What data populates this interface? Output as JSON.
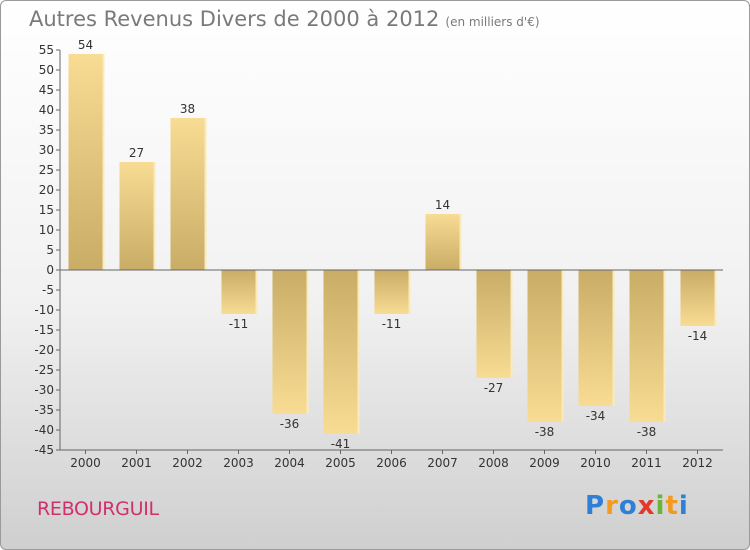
{
  "chart_data": {
    "type": "bar",
    "title": "Autres Revenus Divers de 2000 à 2012",
    "subtitle": "(en milliers d'€)",
    "categories": [
      "2000",
      "2001",
      "2002",
      "2003",
      "2004",
      "2005",
      "2006",
      "2007",
      "2008",
      "2009",
      "2010",
      "2011",
      "2012"
    ],
    "values": [
      54,
      27,
      38,
      -11,
      -36,
      -41,
      -11,
      14,
      -27,
      -38,
      -34,
      -38,
      -14
    ],
    "ylim": [
      -45,
      55
    ],
    "yticks": [
      55,
      50,
      45,
      40,
      35,
      30,
      25,
      20,
      15,
      10,
      5,
      0,
      -5,
      -10,
      -15,
      -20,
      -25,
      -30,
      -35,
      -40,
      -45
    ],
    "grid": false,
    "colors": {
      "bar_light": "#f8dc94",
      "bar_dark": "#c9ad66",
      "axis": "#666666"
    }
  },
  "footer": {
    "place": "REBOURGUIL",
    "logo": {
      "p": "P",
      "r": "r",
      "o": "o",
      "x": "x",
      "i": "i",
      "t": "t",
      "i2": "i"
    }
  }
}
